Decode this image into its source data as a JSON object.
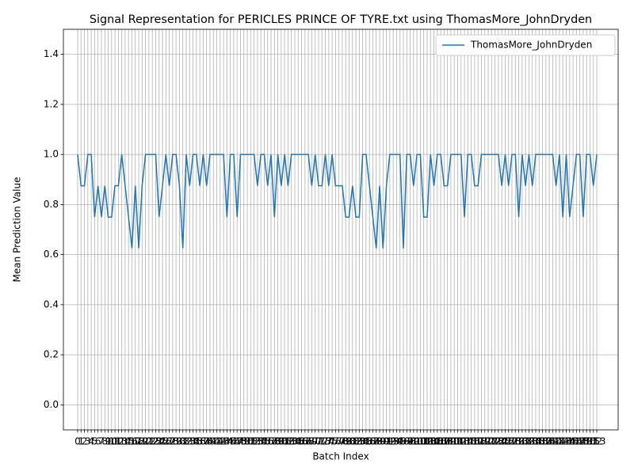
{
  "chart_data": {
    "type": "line",
    "title": "Signal Representation for PERICLES PRINCE OF TYRE.txt using ThomasMore_JohnDryden",
    "xlabel": "Batch Index",
    "ylabel": "Mean Prediction Value",
    "x": [
      0,
      1,
      2,
      3,
      4,
      5,
      6,
      7,
      8,
      9,
      10,
      11,
      12,
      13,
      14,
      15,
      16,
      17,
      18,
      19,
      20,
      21,
      22,
      23,
      24,
      25,
      26,
      27,
      28,
      29,
      30,
      31,
      32,
      33,
      34,
      35,
      36,
      37,
      38,
      39,
      40,
      41,
      42,
      43,
      44,
      45,
      46,
      47,
      48,
      49,
      50,
      51,
      52,
      53,
      54,
      55,
      56,
      57,
      58,
      59,
      60,
      61,
      62,
      63,
      64,
      65,
      66,
      67,
      68,
      69,
      70,
      71,
      72,
      73,
      74,
      75,
      76,
      77,
      78,
      79,
      80,
      81,
      82,
      83,
      84,
      85,
      86,
      87,
      88,
      89,
      90,
      91,
      92,
      93,
      94,
      95,
      96,
      97,
      98,
      99,
      100,
      101,
      102,
      103,
      104,
      105,
      106,
      107,
      108,
      109,
      110,
      111,
      112,
      113,
      114,
      115,
      116,
      117,
      118,
      119,
      120,
      121,
      122,
      123,
      124,
      125,
      126,
      127,
      128,
      129,
      130,
      131,
      132,
      133,
      134,
      135,
      136,
      137,
      138,
      139,
      140,
      141,
      142,
      143,
      144,
      145,
      146,
      147,
      148,
      149,
      150,
      151,
      152,
      153
    ],
    "series": [
      {
        "name": "ThomasMore_JohnDryden",
        "color": "#1f77b4",
        "values": [
          1,
          0.875,
          0.875,
          1,
          1,
          0.75,
          0.875,
          0.75,
          0.875,
          0.75,
          0.75,
          0.875,
          0.875,
          1,
          0.875,
          0.75,
          0.625,
          0.875,
          0.625,
          0.875,
          1,
          1,
          1,
          1,
          0.75,
          0.875,
          1,
          0.875,
          1,
          1,
          0.875,
          0.625,
          1,
          0.875,
          1,
          1,
          0.875,
          1,
          0.875,
          1,
          1,
          1,
          1,
          1,
          0.75,
          1,
          1,
          0.75,
          1,
          1,
          1,
          1,
          1,
          0.875,
          1,
          1,
          0.875,
          1,
          0.75,
          1,
          0.875,
          1,
          0.875,
          1,
          1,
          1,
          1,
          1,
          1,
          0.875,
          1,
          0.875,
          0.875,
          1,
          0.875,
          1,
          0.875,
          0.875,
          0.875,
          0.75,
          0.75,
          0.875,
          0.75,
          0.75,
          1,
          1,
          0.875,
          0.75,
          0.625,
          0.875,
          0.625,
          0.875,
          1,
          1,
          1,
          1,
          0.625,
          1,
          1,
          0.875,
          1,
          1,
          0.75,
          0.75,
          1,
          0.875,
          1,
          1,
          0.875,
          0.875,
          1,
          1,
          1,
          1,
          0.75,
          1,
          1,
          0.875,
          0.875,
          1,
          1,
          1,
          1,
          1,
          1,
          0.875,
          1,
          0.875,
          1,
          1,
          0.75,
          1,
          0.875,
          1,
          0.875,
          1,
          1,
          1,
          1,
          1,
          1,
          0.875,
          1,
          0.75,
          1,
          0.75,
          0.875,
          1,
          1,
          0.75,
          1,
          1,
          0.875,
          1
        ]
      }
    ],
    "xlim": [
      -4.2,
      159.3
    ],
    "xticks": [
      0,
      1,
      2,
      3,
      4,
      5,
      6,
      7,
      8,
      9,
      10,
      11,
      12,
      13,
      14,
      15,
      16,
      17,
      18,
      19,
      20,
      21,
      22,
      23,
      24,
      25,
      26,
      27,
      28,
      29,
      30,
      31,
      32,
      33,
      34,
      35,
      36,
      37,
      38,
      39,
      40,
      41,
      42,
      43,
      44,
      45,
      46,
      47,
      48,
      49,
      50,
      51,
      52,
      53,
      54,
      55,
      56,
      57,
      58,
      59,
      60,
      61,
      62,
      63,
      64,
      65,
      66,
      67,
      68,
      69,
      70,
      71,
      72,
      73,
      74,
      75,
      76,
      77,
      78,
      79,
      80,
      81,
      82,
      83,
      84,
      85,
      86,
      87,
      88,
      89,
      90,
      91,
      92,
      93,
      94,
      95,
      96,
      97,
      98,
      99,
      100,
      101,
      102,
      103,
      104,
      105,
      106,
      107,
      108,
      109,
      110,
      111,
      112,
      113,
      114,
      115,
      116,
      117,
      118,
      119,
      120,
      121,
      122,
      123,
      124,
      125,
      126,
      127,
      128,
      129,
      130,
      131,
      132,
      133,
      134,
      135,
      136,
      137,
      138,
      139,
      140,
      141,
      142,
      143,
      144,
      145,
      146,
      147,
      148,
      149,
      150,
      151,
      152,
      153
    ],
    "ylim": [
      -0.1,
      1.5
    ],
    "yticks": [
      {
        "value": 0,
        "label": "0.0"
      },
      0.2,
      0.4,
      0.6,
      0.8,
      {
        "value": 1,
        "label": "1.0"
      },
      1.2,
      1.4
    ],
    "grid": true,
    "legend": "upper right"
  }
}
